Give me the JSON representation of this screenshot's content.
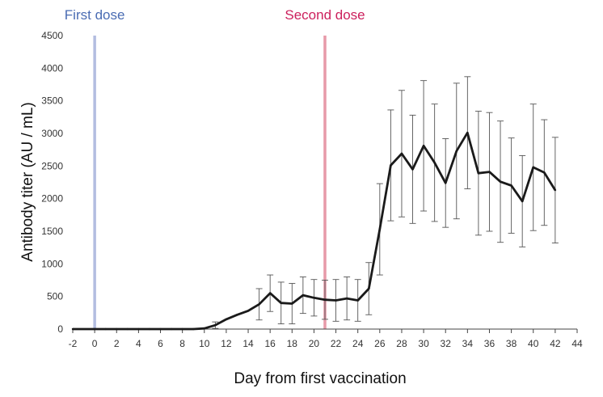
{
  "chart_data": {
    "type": "line",
    "title": "",
    "xlabel": "Day from first vaccination",
    "ylabel": "Antibody titer (AU / mL)",
    "xlim": [
      -2,
      44
    ],
    "ylim": [
      0,
      4500
    ],
    "xticks": [
      -2,
      0,
      2,
      4,
      6,
      8,
      10,
      12,
      14,
      16,
      18,
      20,
      22,
      24,
      26,
      28,
      30,
      32,
      34,
      36,
      38,
      40,
      42,
      44
    ],
    "yticks": [
      0,
      500,
      1000,
      1500,
      2000,
      2500,
      3000,
      3500,
      4000,
      4500
    ],
    "grid": false,
    "series": [
      {
        "name": "Antibody titer",
        "color": "#1a1a1a",
        "x": [
          -2,
          0,
          1,
          2,
          3,
          4,
          5,
          6,
          7,
          8,
          9,
          10,
          11,
          12,
          13,
          14,
          15,
          16,
          17,
          18,
          19,
          20,
          21,
          22,
          23,
          24,
          25,
          26,
          27,
          28,
          29,
          30,
          31,
          32,
          33,
          34,
          35,
          36,
          37,
          38,
          39,
          40,
          41,
          42
        ],
        "y": [
          0,
          0,
          0,
          0,
          0,
          0,
          0,
          0,
          0,
          0,
          0,
          10,
          60,
          150,
          220,
          280,
          380,
          550,
          400,
          390,
          520,
          480,
          450,
          440,
          470,
          440,
          620,
          1530,
          2510,
          2690,
          2450,
          2810,
          2550,
          2240,
          2730,
          3010,
          2390,
          2410,
          2260,
          2200,
          1960,
          2480,
          2400,
          2130
        ],
        "err": [
          0,
          0,
          0,
          0,
          0,
          0,
          0,
          0,
          0,
          0,
          0,
          0,
          50,
          0,
          0,
          0,
          240,
          280,
          320,
          310,
          280,
          280,
          300,
          320,
          330,
          320,
          400,
          700,
          850,
          970,
          830,
          1000,
          900,
          680,
          1040,
          860,
          950,
          910,
          930,
          730,
          700,
          970,
          810,
          810
        ]
      }
    ],
    "markers": [
      {
        "label": "First dose",
        "x": 0,
        "color": "#b3bde0",
        "label_color": "#4a6cb3"
      },
      {
        "label": "Second dose",
        "x": 21,
        "color": "#e79aa9",
        "label_color": "#cc1f5c"
      }
    ]
  }
}
